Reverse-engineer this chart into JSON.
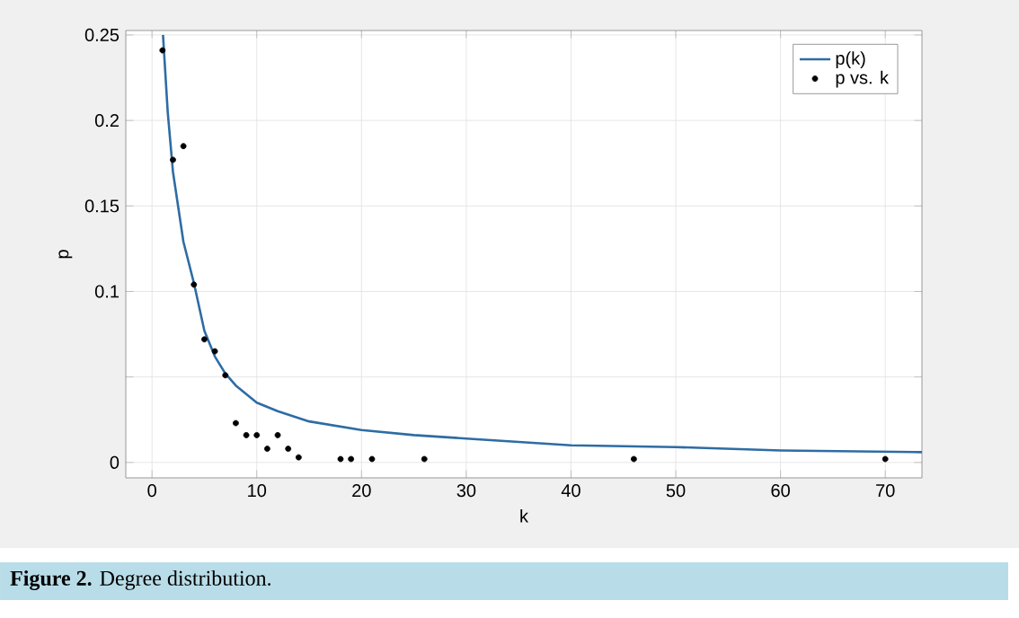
{
  "chart_data": {
    "type": "scatter",
    "xlabel": "k",
    "ylabel": "p",
    "annotations": [
      "**Figure 2.** Degree distribution."
    ],
    "xlim": [
      -2.5,
      73.5
    ],
    "ylim": [
      -0.009,
      0.2526
    ],
    "xticks": [
      0,
      10,
      20,
      30,
      40,
      50,
      60,
      70
    ],
    "yticks": [
      0,
      {
        "value": 0.05,
        "label": null
      },
      0.1,
      0.15,
      0.2,
      0.25
    ],
    "grid": true,
    "legend": "top right",
    "series": [
      {
        "name": "p(k)",
        "type": "line",
        "color": "#2e6ca4",
        "marker": "none",
        "line_style": "solid",
        "x": [
          1.05,
          1.5,
          2,
          3,
          4,
          5,
          6,
          7,
          8,
          10,
          12,
          15,
          20,
          25,
          30,
          40,
          50,
          60,
          73.5
        ],
        "values": [
          0.25,
          0.205,
          0.17,
          0.129,
          0.105,
          0.077,
          0.062,
          0.052,
          0.045,
          0.035,
          0.03,
          0.024,
          0.019,
          0.016,
          0.014,
          0.01,
          0.009,
          0.007,
          0.006
        ]
      },
      {
        "name": "p vs. k",
        "color": "#000000",
        "marker": "circle",
        "x": [
          1,
          2,
          3,
          4,
          5,
          6,
          7,
          8,
          9,
          10,
          11,
          12,
          13,
          14,
          18,
          19,
          21,
          26,
          46,
          70
        ],
        "values": [
          0.241,
          0.177,
          0.185,
          0.104,
          0.072,
          0.065,
          0.051,
          0.023,
          0.016,
          0.016,
          0.008,
          0.016,
          0.008,
          0.003,
          0.002,
          0.002,
          0.002,
          0.002,
          0.002,
          0.002
        ]
      }
    ]
  }
}
